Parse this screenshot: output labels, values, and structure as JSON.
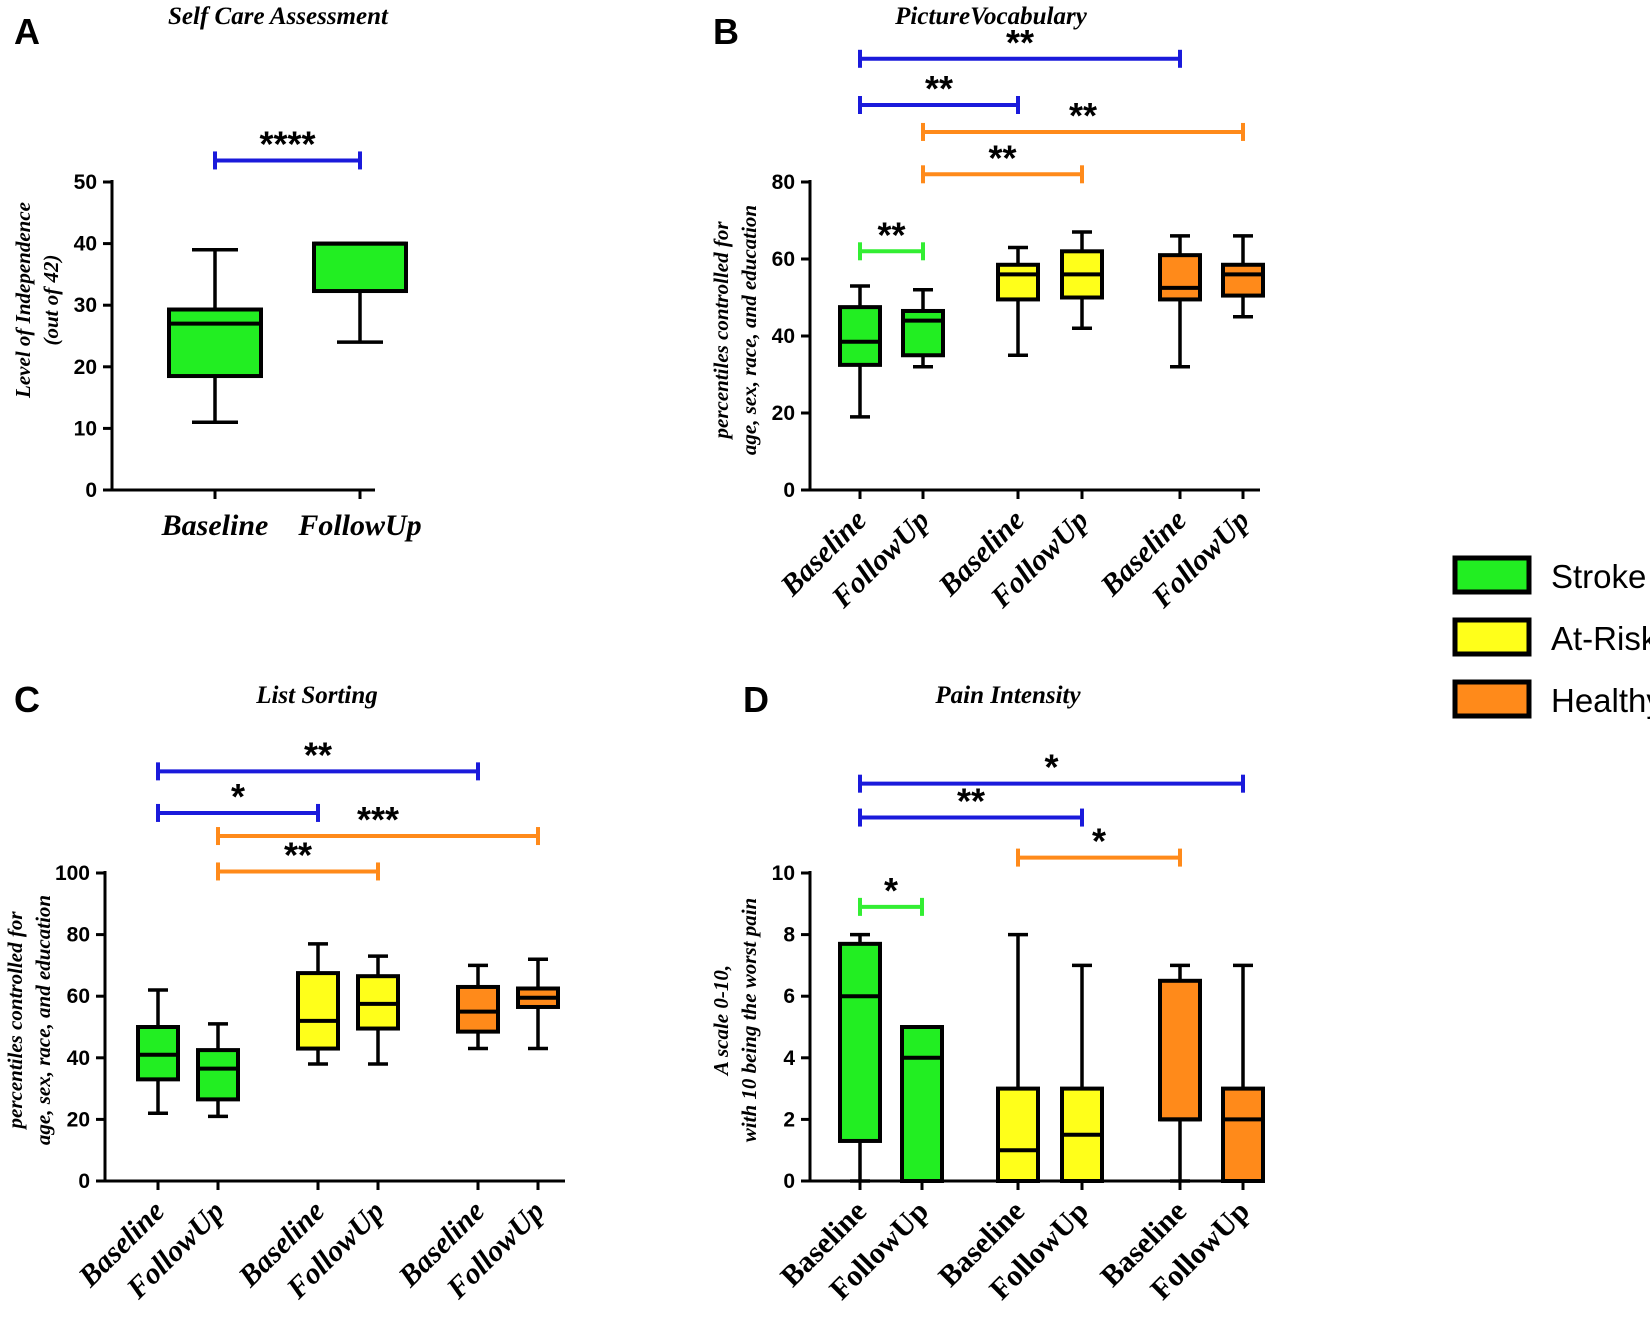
{
  "figure": {
    "colors": {
      "stroke": "#22ee22",
      "atrisk": "#ffff1a",
      "healthy": "#ff8a1a",
      "blue": "#1a1adb",
      "orange": "#ff8a1a",
      "green": "#33ee33"
    }
  },
  "legend": [
    {
      "label": "Stroke",
      "group": "stroke"
    },
    {
      "label": "At-Risk",
      "group": "atrisk"
    },
    {
      "label": "Healthy",
      "group": "healthy"
    }
  ],
  "chart_data": [
    {
      "panel": "A",
      "type": "box",
      "title": "Self Care Assessment",
      "ylabel": [
        "Level of Independence",
        "(out of 42)"
      ],
      "ylim": [
        0,
        50
      ],
      "yticks": [
        0,
        10,
        20,
        30,
        40,
        50
      ],
      "categories": [
        "Baseline",
        "FollowUp"
      ],
      "label_style": "horizontal",
      "boxes": [
        {
          "label": "Baseline",
          "group": "stroke",
          "min": 11,
          "q1": 18.5,
          "median": 27,
          "q3": 29.3,
          "max": 39
        },
        {
          "label": "FollowUp",
          "group": "stroke",
          "min": 24,
          "q1": 32.3,
          "median": 40,
          "q3": 40,
          "max": 40
        }
      ],
      "significance": [
        {
          "from": 0,
          "to": 1,
          "label": "****",
          "color": "blue",
          "level": 53.5
        }
      ]
    },
    {
      "panel": "B",
      "type": "box",
      "title": "PictureVocabulary",
      "ylabel": [
        "percentiles controlled for",
        "age, sex, race, and education"
      ],
      "ylim": [
        0,
        80
      ],
      "yticks": [
        0,
        20,
        40,
        60,
        80
      ],
      "categories": [
        "Baseline",
        "FollowUp",
        "Baseline",
        "FollowUp",
        "Baseline",
        "FollowUp"
      ],
      "label_style": "rotated",
      "boxes": [
        {
          "label": "Baseline",
          "group": "stroke",
          "min": 19,
          "q1": 32.5,
          "median": 38.5,
          "q3": 47.5,
          "max": 53
        },
        {
          "label": "FollowUp",
          "group": "stroke",
          "min": 32,
          "q1": 35,
          "median": 44,
          "q3": 46.5,
          "max": 52
        },
        {
          "label": "Baseline",
          "group": "atrisk",
          "min": 35,
          "q1": 49.5,
          "median": 56,
          "q3": 58.5,
          "max": 63
        },
        {
          "label": "FollowUp",
          "group": "atrisk",
          "min": 42,
          "q1": 50,
          "median": 56,
          "q3": 62,
          "max": 67
        },
        {
          "label": "Baseline",
          "group": "healthy",
          "min": 32,
          "q1": 49.5,
          "median": 52.5,
          "q3": 61,
          "max": 66
        },
        {
          "label": "FollowUp",
          "group": "healthy",
          "min": 45,
          "q1": 50.5,
          "median": 56,
          "q3": 58.5,
          "max": 66
        }
      ],
      "significance": [
        {
          "from": 0,
          "to": 1,
          "label": "**",
          "color": "green",
          "level": 62
        },
        {
          "from": 1,
          "to": 3,
          "label": "**",
          "color": "orange",
          "level": 82
        },
        {
          "from": 1,
          "to": 5,
          "label": "**",
          "color": "orange",
          "level": 93
        },
        {
          "from": 0,
          "to": 2,
          "label": "**",
          "color": "blue",
          "level": 100
        },
        {
          "from": 0,
          "to": 4,
          "label": "**",
          "color": "blue",
          "level": 112
        }
      ]
    },
    {
      "panel": "C",
      "type": "box",
      "title": "List Sorting",
      "ylabel": [
        "percentiles controlled for",
        "age, sex, race, and education"
      ],
      "ylim": [
        0,
        100
      ],
      "yticks": [
        0,
        20,
        40,
        60,
        80,
        100
      ],
      "categories": [
        "Baseline",
        "FollowUp",
        "Baseline",
        "FollowUp",
        "Baseline",
        "FollowUp"
      ],
      "label_style": "rotated",
      "boxes": [
        {
          "label": "Baseline",
          "group": "stroke",
          "min": 22,
          "q1": 33,
          "median": 41,
          "q3": 50,
          "max": 62
        },
        {
          "label": "FollowUp",
          "group": "stroke",
          "min": 21,
          "q1": 26.5,
          "median": 36.5,
          "q3": 42.5,
          "max": 51
        },
        {
          "label": "Baseline",
          "group": "atrisk",
          "min": 38,
          "q1": 43,
          "median": 52,
          "q3": 67.5,
          "max": 77
        },
        {
          "label": "FollowUp",
          "group": "atrisk",
          "min": 38,
          "q1": 49.5,
          "median": 57.5,
          "q3": 66.5,
          "max": 73
        },
        {
          "label": "Baseline",
          "group": "healthy",
          "min": 43,
          "q1": 48.5,
          "median": 55,
          "q3": 63,
          "max": 70
        },
        {
          "label": "FollowUp",
          "group": "healthy",
          "min": 43,
          "q1": 56.5,
          "median": 59.5,
          "q3": 62.5,
          "max": 72
        }
      ],
      "significance": [
        {
          "from": 1,
          "to": 3,
          "label": "**",
          "color": "orange",
          "level": 100.5
        },
        {
          "from": 1,
          "to": 5,
          "label": "***",
          "color": "orange",
          "level": 112
        },
        {
          "from": 0,
          "to": 2,
          "label": "*",
          "color": "blue",
          "level": 119.5
        },
        {
          "from": 0,
          "to": 4,
          "label": "**",
          "color": "blue",
          "level": 133
        }
      ]
    },
    {
      "panel": "D",
      "type": "box",
      "title": "Pain Intensity",
      "ylabel": [
        "A scale 0-10,",
        "with 10 being the worst pain"
      ],
      "ylim": [
        0,
        10
      ],
      "yticks": [
        0,
        2,
        4,
        6,
        8,
        10
      ],
      "categories": [
        "Baseline",
        "FollowUp",
        "Baseline",
        "FollowUp",
        "Baseline",
        "FollowUp"
      ],
      "label_style": "rotated-upright",
      "boxes": [
        {
          "label": "Baseline",
          "group": "stroke",
          "min": 0,
          "q1": 1.3,
          "median": 6,
          "q3": 7.7,
          "max": 8
        },
        {
          "label": "FollowUp",
          "group": "stroke",
          "min": 0,
          "q1": 0,
          "median": 4,
          "q3": 5,
          "max": 5
        },
        {
          "label": "Baseline",
          "group": "atrisk",
          "min": 0,
          "q1": 0,
          "median": 1,
          "q3": 3,
          "max": 8
        },
        {
          "label": "FollowUp",
          "group": "atrisk",
          "min": 0,
          "q1": 0,
          "median": 1.5,
          "q3": 3,
          "max": 7
        },
        {
          "label": "Baseline",
          "group": "healthy",
          "min": 0,
          "q1": 2,
          "median": 2,
          "q3": 6.5,
          "max": 7
        },
        {
          "label": "FollowUp",
          "group": "healthy",
          "min": 0,
          "q1": 0,
          "median": 2,
          "q3": 3,
          "max": 7
        }
      ],
      "significance": [
        {
          "from": 0,
          "to": 1,
          "label": "*",
          "color": "green",
          "level": 8.9
        },
        {
          "from": 2,
          "to": 4,
          "label": "*",
          "color": "orange",
          "level": 10.5
        },
        {
          "from": 0,
          "to": 3,
          "label": "**",
          "color": "blue",
          "level": 11.8
        },
        {
          "from": 0,
          "to": 5,
          "label": "*",
          "color": "blue",
          "level": 12.9
        }
      ]
    }
  ]
}
